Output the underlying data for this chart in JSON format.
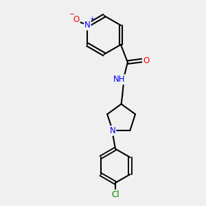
{
  "background_color": "#f0f0f0",
  "bond_color": "#000000",
  "atom_colors": {
    "N": "#0000ff",
    "O": "#ff0000",
    "Cl": "#008000",
    "C": "#000000",
    "H": "#808080"
  },
  "title": "",
  "figsize": [
    3.0,
    3.0
  ],
  "dpi": 100
}
